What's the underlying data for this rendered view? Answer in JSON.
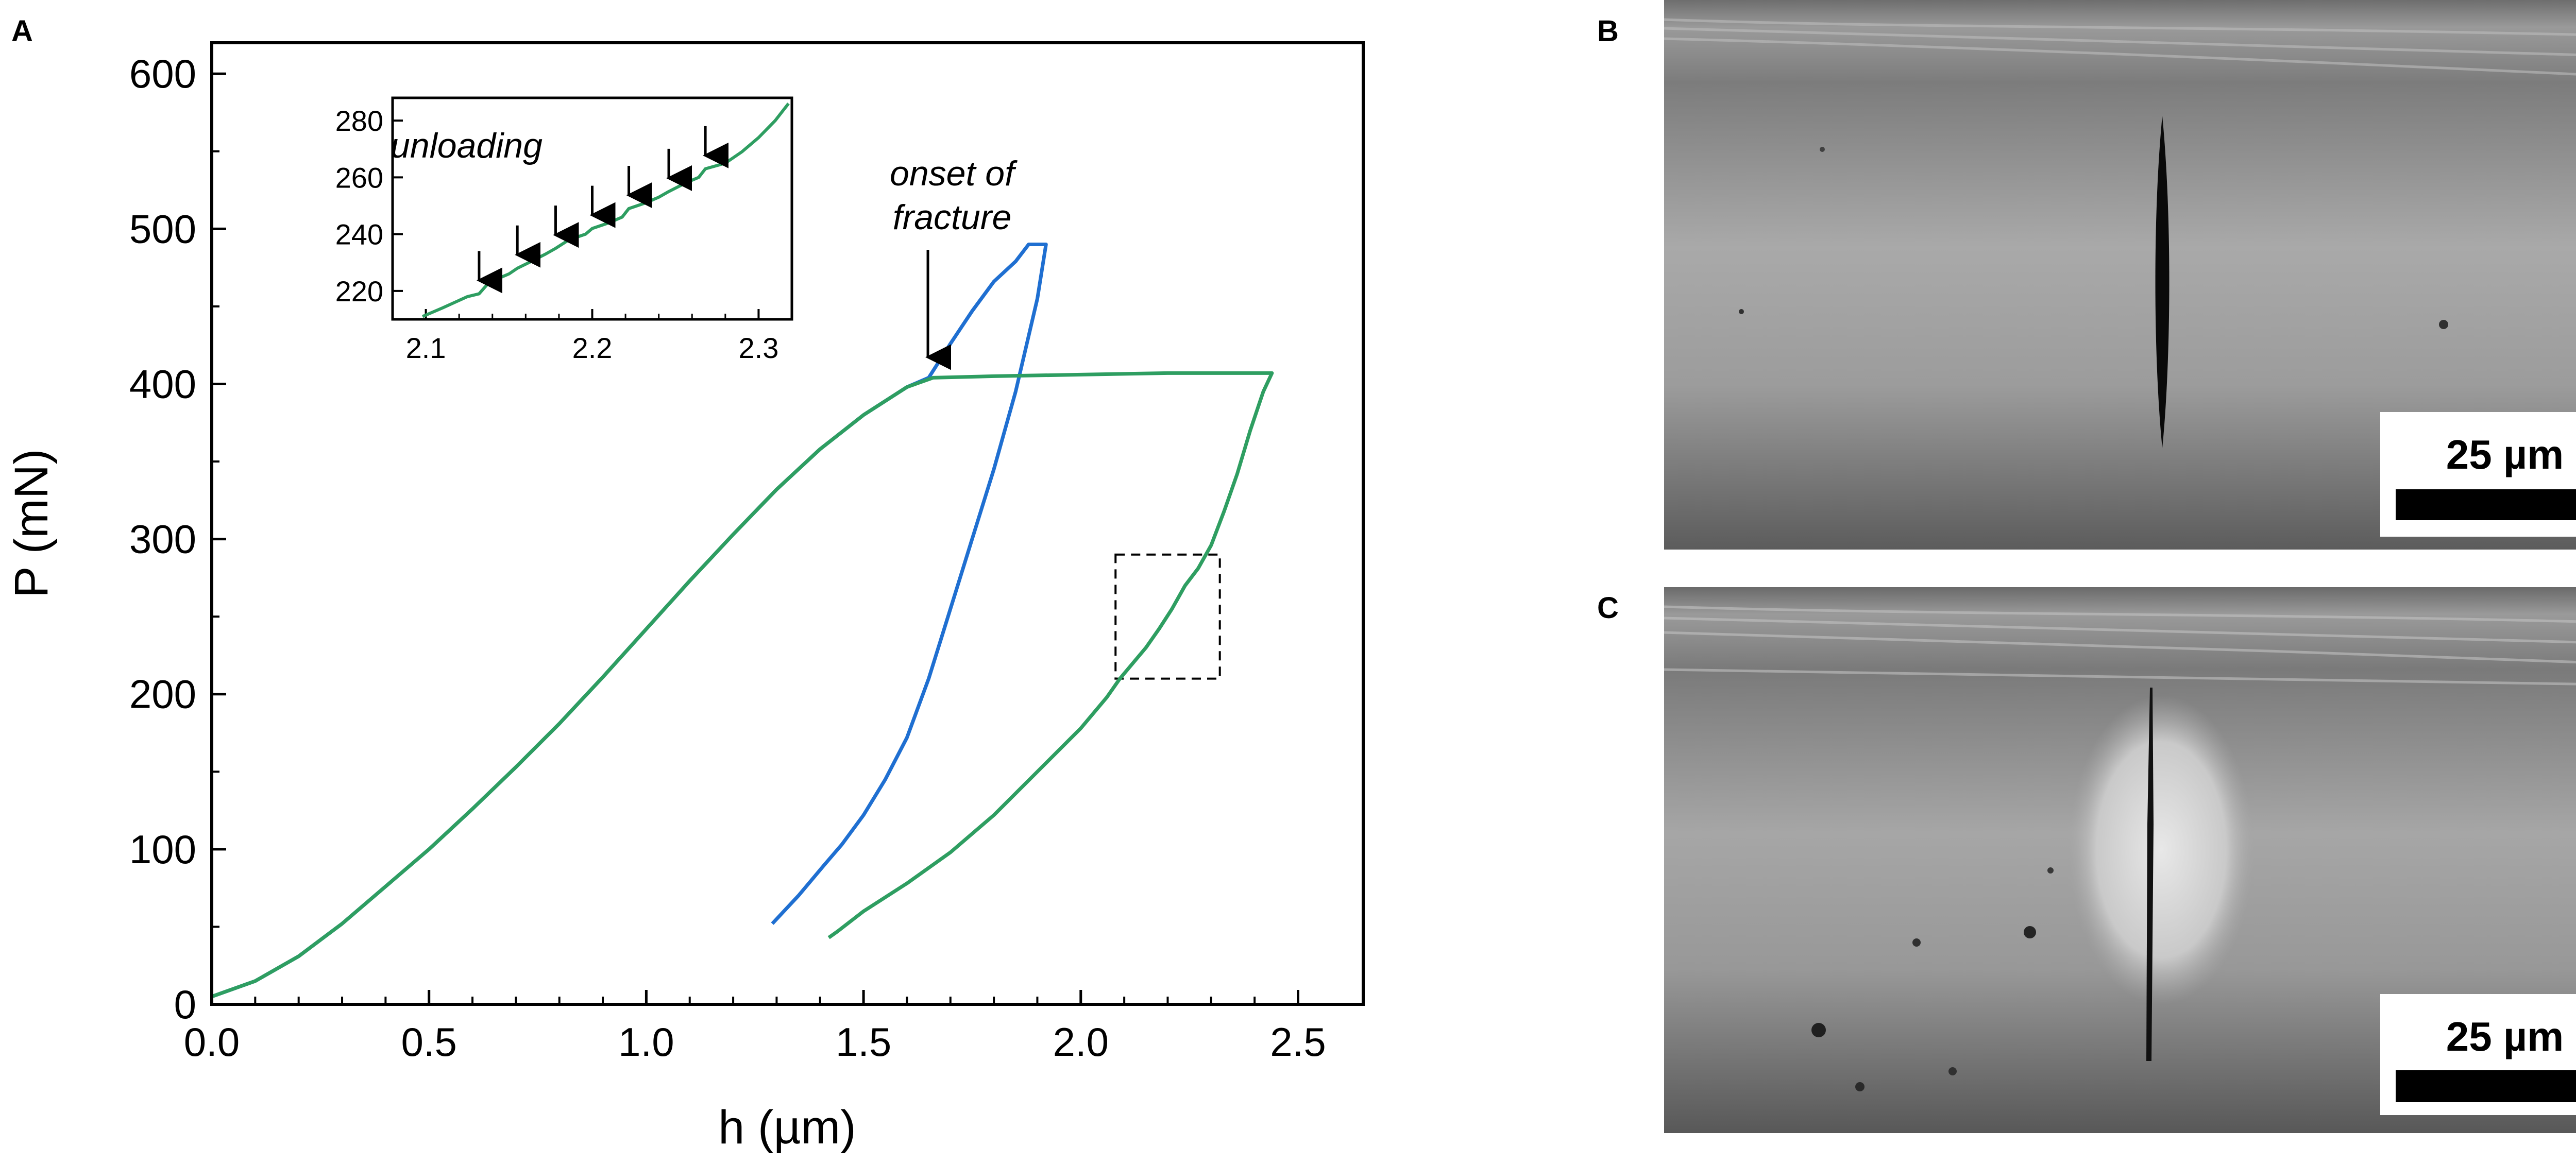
{
  "panels": {
    "a_label": "A",
    "b_label": "B",
    "c_label": "C"
  },
  "chart_data": [
    {
      "type": "line",
      "panel": "A",
      "xlabel": "h (µm)",
      "ylabel": "P (mN)",
      "xlim": [
        0,
        2.65
      ],
      "ylim": [
        0,
        620
      ],
      "xticks": [
        0.0,
        0.5,
        1.0,
        1.5,
        2.0,
        2.5
      ],
      "xtick_labels": [
        "0.0",
        "0.5",
        "1.0",
        "1.5",
        "2.0",
        "2.5"
      ],
      "yticks": [
        0,
        100,
        200,
        300,
        400,
        500,
        600
      ],
      "ytick_labels": [
        "0",
        "100",
        "200",
        "300",
        "400",
        "500",
        "600"
      ],
      "grid": false,
      "series": [
        {
          "color": "#1f6fd1",
          "x": [
            0.0,
            0.1,
            0.2,
            0.3,
            0.4,
            0.5,
            0.6,
            0.7,
            0.8,
            0.9,
            1.0,
            1.1,
            1.2,
            1.3,
            1.4,
            1.5,
            1.6,
            1.65,
            1.7,
            1.75,
            1.8,
            1.85,
            1.88,
            1.92,
            1.9,
            1.85,
            1.8,
            1.75,
            1.7,
            1.65,
            1.6,
            1.55,
            1.5,
            1.45,
            1.41,
            1.35,
            1.29
          ],
          "y": [
            5,
            15,
            31,
            52,
            76,
            100,
            126,
            153,
            181,
            211,
            242,
            273,
            303,
            332,
            358,
            380,
            398,
            404,
            426,
            447,
            466,
            479,
            490,
            490,
            455,
            395,
            345,
            300,
            255,
            210,
            172,
            145,
            122,
            103,
            90,
            70,
            52
          ]
        },
        {
          "color": "#2e9e61",
          "x": [
            0.0,
            0.1,
            0.2,
            0.3,
            0.4,
            0.5,
            0.6,
            0.7,
            0.8,
            0.9,
            1.0,
            1.1,
            1.2,
            1.3,
            1.4,
            1.5,
            1.6,
            1.66,
            1.8,
            2.0,
            2.2,
            2.44,
            2.42,
            2.39,
            2.36,
            2.33,
            2.3,
            2.27,
            2.24,
            2.21,
            2.18,
            2.15,
            2.12,
            2.09,
            2.06,
            2.0,
            1.9,
            1.8,
            1.7,
            1.6,
            1.5,
            1.44,
            1.42
          ],
          "y": [
            5,
            15,
            31,
            52,
            76,
            100,
            126,
            153,
            181,
            211,
            242,
            273,
            303,
            332,
            358,
            380,
            398,
            404,
            405,
            406,
            407,
            407,
            395,
            370,
            342,
            318,
            296,
            281,
            270,
            255,
            242,
            230,
            220,
            210,
            198,
            178,
            150,
            122,
            98,
            78,
            60,
            47,
            43
          ]
        }
      ],
      "annotations": [
        {
          "text_lines": [
            "onset of",
            "fracture"
          ],
          "x": 1.66,
          "y": 404
        }
      ],
      "zoom_box": {
        "x": [
          2.08,
          2.32
        ],
        "y": [
          210,
          290
        ]
      }
    },
    {
      "type": "line",
      "panel": "A-inset",
      "annotation": "unloading",
      "xlim": [
        2.08,
        2.32
      ],
      "ylim": [
        210,
        288
      ],
      "xticks": [
        2.1,
        2.2,
        2.3
      ],
      "xtick_labels": [
        "2.1",
        "2.2",
        "2.3"
      ],
      "yticks": [
        220,
        240,
        260,
        280
      ],
      "ytick_labels": [
        "220",
        "240",
        "260",
        "280"
      ],
      "series": [
        {
          "color": "#2e9e61",
          "x": [
            2.098,
            2.11,
            2.125,
            2.132,
            2.138,
            2.15,
            2.155,
            2.162,
            2.172,
            2.178,
            2.186,
            2.196,
            2.2,
            2.21,
            2.218,
            2.222,
            2.232,
            2.24,
            2.246,
            2.256,
            2.264,
            2.268,
            2.28,
            2.29,
            2.3,
            2.31,
            2.318
          ],
          "y": [
            211,
            214,
            218,
            219,
            223,
            226,
            228,
            230,
            233,
            235,
            238,
            240,
            242,
            244,
            246,
            249,
            251,
            253,
            255,
            258,
            260,
            263,
            265,
            269,
            274,
            280,
            286
          ]
        }
      ],
      "arrows_x": [
        2.132,
        2.155,
        2.178,
        2.2,
        2.222,
        2.246,
        2.268
      ]
    }
  ],
  "micrographs": [
    {
      "panel": "B",
      "scale_bar_label": "25 µm"
    },
    {
      "panel": "C",
      "scale_bar_label": "25 µm"
    }
  ]
}
